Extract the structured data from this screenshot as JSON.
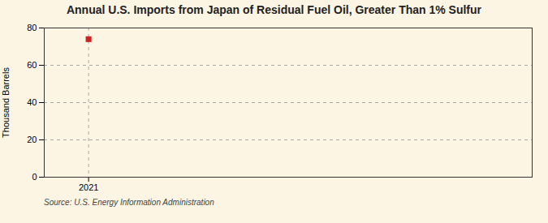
{
  "chart_data": {
    "type": "scatter",
    "title": "Annual U.S. Imports from Japan of Residual Fuel Oil, Greater Than 1% Sulfur",
    "ylabel": "Thousand Barrels",
    "source": "Source: U.S. Energy Information Administration",
    "x": [
      2021
    ],
    "values": [
      74
    ],
    "color": "#cc2222",
    "marker": "square",
    "xlim": [
      2020.7,
      2024.0
    ],
    "ylim": [
      0,
      80
    ],
    "xticks": [
      2021
    ],
    "yticks": [
      0,
      20,
      40,
      60,
      80
    ],
    "grid": true
  }
}
